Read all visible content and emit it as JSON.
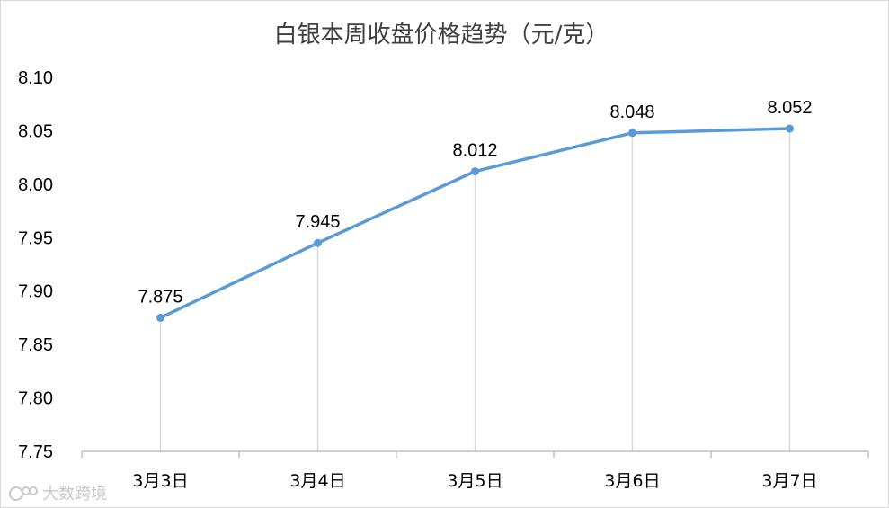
{
  "colors": {
    "series": "#5b9bd5",
    "drop_line": "#d9d9d9",
    "axis": "#bfbfbf",
    "text": "#000000",
    "title": "#404040"
  },
  "watermark": {
    "text": "大数跨境",
    "icon": "brand-logo-icon"
  },
  "chart_data": {
    "type": "line",
    "title": "白银本周收盘价格趋势（元/克）",
    "xlabel": "",
    "ylabel": "",
    "categories": [
      "3月3日",
      "3月4日",
      "3月5日",
      "3月6日",
      "3月7日"
    ],
    "series": [
      {
        "values": [
          7.875,
          7.945,
          8.012,
          8.048,
          8.052
        ],
        "labels": [
          "7.875",
          "7.945",
          "8.012",
          "8.048",
          "8.052"
        ]
      }
    ],
    "ylim": [
      7.75,
      8.1
    ],
    "yticks": [
      "7.75",
      "7.80",
      "7.85",
      "7.90",
      "7.95",
      "8.00",
      "8.05",
      "8.10"
    ],
    "grid": false,
    "drop_lines": true,
    "legend": "none",
    "data_labels": "above"
  }
}
